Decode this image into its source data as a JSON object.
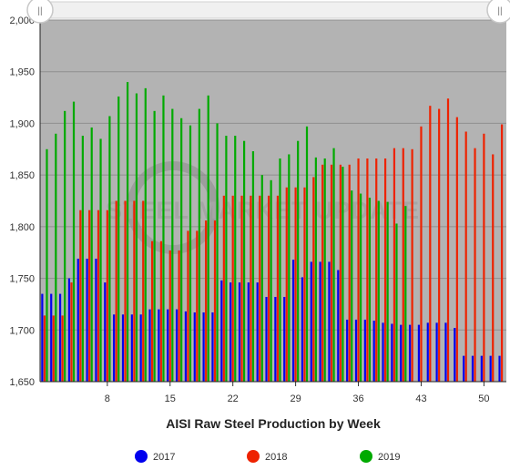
{
  "navigator": {
    "left_handle_glyph": "||",
    "right_handle_glyph": "||"
  },
  "watermark": {
    "text": "STEEL MARKET UPDATE"
  },
  "chart_data": {
    "type": "bar",
    "title": "AISI Raw Steel Production by Week",
    "xlabel": "",
    "ylabel": "",
    "x_ticks": [
      8,
      15,
      22,
      29,
      36,
      43,
      50
    ],
    "xlim": [
      1,
      52
    ],
    "ylim": [
      1650,
      2000
    ],
    "y_ticks": [
      1650,
      1700,
      1750,
      1800,
      1850,
      1900,
      1950,
      2000
    ],
    "y_tick_labels": [
      "1,650",
      "1,700",
      "1,750",
      "1,800",
      "1,850",
      "1,900",
      "1,950",
      "2,000"
    ],
    "grid": true,
    "plot_background": "#b3b3b3",
    "legend_position": "bottom",
    "series": [
      {
        "name": "2017",
        "color": "#0000ee",
        "weeks": [
          1,
          2,
          3,
          4,
          5,
          6,
          7,
          8,
          9,
          10,
          11,
          12,
          13,
          14,
          15,
          16,
          17,
          18,
          19,
          20,
          21,
          22,
          23,
          24,
          25,
          26,
          27,
          28,
          29,
          30,
          31,
          32,
          33,
          34,
          35,
          36,
          37,
          38,
          39,
          40,
          41,
          42,
          43,
          44,
          45,
          46,
          47,
          48,
          49,
          50,
          51,
          52
        ],
        "values": [
          1735,
          1735,
          1735,
          1750,
          1769,
          1769,
          1769,
          1746,
          1715,
          1715,
          1715,
          1715,
          1720,
          1720,
          1720,
          1720,
          1718,
          1717,
          1717,
          1717,
          1748,
          1746,
          1746,
          1746,
          1746,
          1732,
          1732,
          1732,
          1768,
          1751,
          1766,
          1766,
          1766,
          1758,
          1710,
          1710,
          1710,
          1709,
          1707,
          1706,
          1705,
          1705,
          1705,
          1707,
          1707,
          1707,
          1702,
          1675,
          1675,
          1675,
          1675,
          1675
        ]
      },
      {
        "name": "2018",
        "color": "#ee2200",
        "weeks": [
          1,
          2,
          3,
          4,
          5,
          6,
          7,
          8,
          9,
          10,
          11,
          12,
          13,
          14,
          15,
          16,
          17,
          18,
          19,
          20,
          21,
          22,
          23,
          24,
          25,
          26,
          27,
          28,
          29,
          30,
          31,
          32,
          33,
          34,
          35,
          36,
          37,
          38,
          39,
          40,
          41,
          42,
          43,
          44,
          45,
          46,
          47,
          48,
          49,
          50,
          51,
          52
        ],
        "values": [
          1714,
          1714,
          1714,
          1746,
          1816,
          1816,
          1816,
          1816,
          1825,
          1825,
          1825,
          1825,
          1786,
          1786,
          1777,
          1777,
          1796,
          1796,
          1806,
          1806,
          1830,
          1830,
          1830,
          1830,
          1830,
          1830,
          1830,
          1838,
          1838,
          1838,
          1848,
          1860,
          1860,
          1860,
          1860,
          1866,
          1866,
          1866,
          1866,
          1876,
          1876,
          1875,
          1897,
          1917,
          1914,
          1924,
          1906,
          1892,
          1876,
          1890,
          1870,
          1899
        ]
      },
      {
        "name": "2019",
        "color": "#00aa00",
        "weeks": [
          1,
          2,
          3,
          4,
          5,
          6,
          7,
          8,
          9,
          10,
          11,
          12,
          13,
          14,
          15,
          16,
          17,
          18,
          19,
          20,
          21,
          22,
          23,
          24,
          25,
          26,
          27,
          28,
          29,
          30,
          31,
          32,
          33,
          34,
          35,
          36,
          37,
          38,
          39,
          40,
          41
        ],
        "values": [
          1875,
          1890,
          1912,
          1921,
          1888,
          1896,
          1885,
          1907,
          1926,
          1940,
          1929,
          1934,
          1912,
          1927,
          1914,
          1905,
          1898,
          1914,
          1927,
          1900,
          1888,
          1888,
          1883,
          1873,
          1850,
          1845,
          1866,
          1870,
          1883,
          1897,
          1867,
          1866,
          1876,
          1858,
          1835,
          1832,
          1828,
          1825,
          1824,
          1803,
          1820
        ]
      }
    ]
  }
}
